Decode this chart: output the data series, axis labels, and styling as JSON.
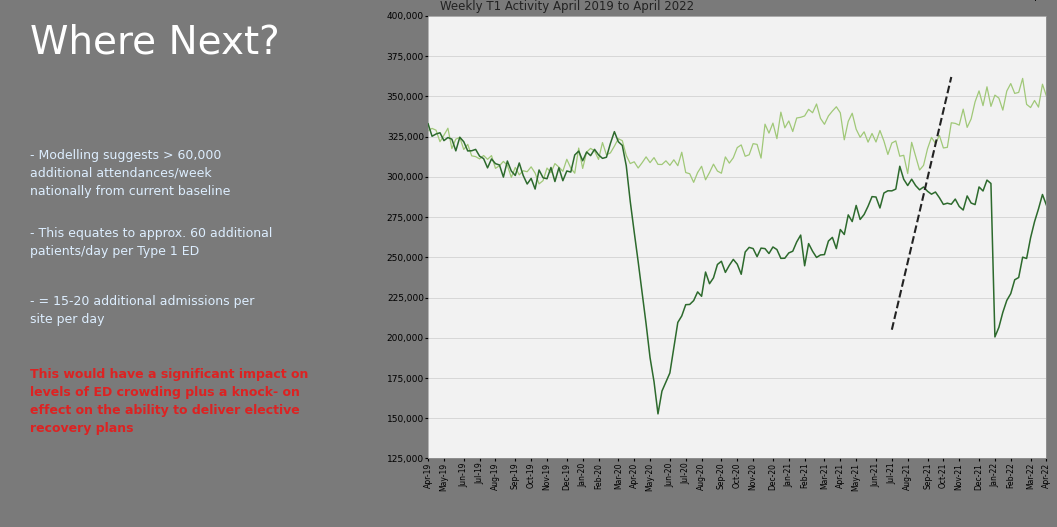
{
  "title": "Weekly T1 Activity April 2019 to April 2022",
  "left_bg": "#3a9fd0",
  "left_title": "Where Next?",
  "left_title_color": "#ffffff",
  "left_text_color": "#ddeeff",
  "left_red_color": "#dd2222",
  "left_bullets": [
    "- Modelling suggests > 60,000\nadditional attendances/week\nnationally from current baseline",
    "- This equates to approx. 60 additional\npatients/day per Type 1 ED",
    "- = 15-20 additional admissions per\nsite per day"
  ],
  "left_red_text": "This would have a significant impact on\nlevels of ED crowding plus a knock- on\neffect on the ability to deliver elective\nrecovery plans",
  "ylim": [
    125000,
    400000
  ],
  "yticks": [
    125000,
    150000,
    175000,
    200000,
    225000,
    250000,
    275000,
    300000,
    325000,
    350000,
    375000,
    400000
  ],
  "actual_color": "#2d6a2d",
  "forecast_color": "#a0c878",
  "intercept_color": "#222222",
  "chart_bg": "#f2f2f2",
  "outer_bg": "#7a7a7a",
  "xtick_labels": [
    "Apr-19",
    "May-19",
    "Jun-19",
    "Jul-19",
    "Aug-19",
    "Sep-19",
    "Oct-19",
    "Nov-19",
    "Dec-19",
    "Jan-20",
    "Feb-20",
    "Mar-20",
    "Apr-20",
    "May-20",
    "Jun-20",
    "Jul-20",
    "Aug-20",
    "Sep-20",
    "Oct-20",
    "Nov-20",
    "Dec-20",
    "Jan-21",
    "Feb-21",
    "Mar-21",
    "Apr-21",
    "May-21",
    "Jun-21",
    "Jul-21",
    "Aug-21",
    "Sep-21",
    "Oct-21",
    "Nov-21",
    "Dec-21",
    "Jan-22",
    "Feb-22",
    "Mar-22",
    "Apr-22"
  ]
}
